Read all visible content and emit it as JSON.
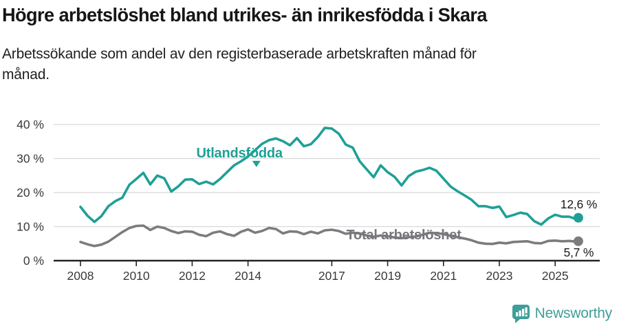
{
  "header": {
    "title": "Högre arbetslöshet bland utrikes- än inrikesfödda i Skara",
    "subtitle_line1": "Arbetssökande som andel av den registerbaserade arbetskraften månad för",
    "subtitle_line2": "månad."
  },
  "chart_data": {
    "type": "line",
    "title": "Högre arbetslöshet bland utrikes- än inrikesfödda i Skara",
    "subtitle": "Arbetssökande som andel av den registerbaserade arbetskraften månad för månad.",
    "grid": "horizontal",
    "legend_position": "inline-labels",
    "x_range": [
      2008,
      2025.92
    ],
    "ylim": [
      0,
      40
    ],
    "y_ticks": [
      0,
      10,
      20,
      30,
      40
    ],
    "y_tick_suffix": " %",
    "x_ticks": [
      2008,
      2010,
      2012,
      2014,
      2017,
      2019,
      2021,
      2023,
      2025
    ],
    "colors": {
      "utlandsfodda": "#1ea096",
      "total": "#7b7c80",
      "grid": "#d8d8d8",
      "axis": "#222222",
      "tick_text": "#3a3a3a",
      "value_text": "#1a1a1a",
      "brand_teal": "#3f9e99"
    },
    "x": [
      2008.0,
      2008.25,
      2008.5,
      2008.75,
      2009.0,
      2009.25,
      2009.5,
      2009.75,
      2010.0,
      2010.25,
      2010.5,
      2010.75,
      2011.0,
      2011.25,
      2011.5,
      2011.75,
      2012.0,
      2012.25,
      2012.5,
      2012.75,
      2013.0,
      2013.25,
      2013.5,
      2013.75,
      2014.0,
      2014.25,
      2014.5,
      2014.75,
      2015.0,
      2015.25,
      2015.5,
      2015.75,
      2016.0,
      2016.25,
      2016.5,
      2016.75,
      2017.0,
      2017.25,
      2017.5,
      2017.75,
      2018.0,
      2018.25,
      2018.5,
      2018.75,
      2019.0,
      2019.25,
      2019.5,
      2019.75,
      2020.0,
      2020.25,
      2020.5,
      2020.75,
      2021.0,
      2021.25,
      2021.5,
      2021.75,
      2022.0,
      2022.25,
      2022.5,
      2022.75,
      2023.0,
      2023.25,
      2023.5,
      2023.75,
      2024.0,
      2024.25,
      2024.5,
      2024.75,
      2025.0,
      2025.25,
      2025.5,
      2025.75,
      2025.83
    ],
    "series": [
      {
        "name": "Utlandsfödda",
        "color": "#1ea096",
        "end_label": "12,6 %",
        "last_value": 12.6,
        "values": [
          15.8,
          13.2,
          11.4,
          13.1,
          16.0,
          17.5,
          18.5,
          22.3,
          24.0,
          25.8,
          22.4,
          25.0,
          24.2,
          20.3,
          21.8,
          23.8,
          23.9,
          22.5,
          23.2,
          22.4,
          24.0,
          26.0,
          28.0,
          29.2,
          30.6,
          32.4,
          34.3,
          35.4,
          35.9,
          35.1,
          33.9,
          36.0,
          33.6,
          34.2,
          36.3,
          39.0,
          38.8,
          37.3,
          34.1,
          33.2,
          29.2,
          26.8,
          24.5,
          28.0,
          26.0,
          24.6,
          22.1,
          24.8,
          26.1,
          26.6,
          27.3,
          26.4,
          24.1,
          21.8,
          20.4,
          19.2,
          17.9,
          16.0,
          16.0,
          15.5,
          15.9,
          12.8,
          13.4,
          14.1,
          13.7,
          11.6,
          10.6,
          12.4,
          13.5,
          12.9,
          12.9,
          12.2,
          12.6
        ]
      },
      {
        "name": "Total arbetslöshet",
        "color": "#7b7c80",
        "end_label": "5,7 %",
        "last_value": 5.7,
        "values": [
          5.5,
          4.8,
          4.3,
          4.7,
          5.6,
          7.0,
          8.4,
          9.6,
          10.2,
          10.3,
          9.0,
          10.0,
          9.6,
          8.7,
          8.1,
          8.6,
          8.5,
          7.6,
          7.2,
          8.2,
          8.6,
          7.8,
          7.3,
          8.5,
          9.2,
          8.2,
          8.7,
          9.6,
          9.3,
          8.0,
          8.6,
          8.5,
          7.8,
          8.5,
          8.0,
          8.9,
          9.1,
          8.7,
          7.9,
          8.2,
          8.0,
          7.4,
          7.0,
          7.4,
          7.2,
          6.8,
          6.6,
          6.9,
          7.1,
          7.6,
          8.2,
          8.1,
          7.8,
          7.3,
          6.9,
          6.5,
          6.0,
          5.3,
          5.0,
          4.9,
          5.3,
          5.1,
          5.5,
          5.6,
          5.7,
          5.2,
          5.1,
          5.8,
          5.9,
          5.7,
          5.8,
          5.6,
          5.7
        ]
      }
    ],
    "annotations": [
      {
        "id": "series-label-utlandsfodda",
        "text": "Utlandsfödda",
        "x": 2012.15,
        "y": 30.3,
        "color": "#1ea096",
        "bold": true,
        "size": 20,
        "anchor": "start"
      },
      {
        "id": "series-label-total",
        "text": "Total arbetslöshet",
        "x": 2017.52,
        "y": 6.3,
        "color": "#76777b",
        "bold": true,
        "size": 20,
        "anchor": "start"
      },
      {
        "id": "end-value-utlandsfodda",
        "text": "12,6 %",
        "x": 2026.5,
        "y": 15.4,
        "color": "#1a1a1a",
        "bold": false,
        "size": 17.5,
        "anchor": "end"
      },
      {
        "id": "end-value-total",
        "text": "5,7 %",
        "x": 2026.38,
        "y": 1.2,
        "color": "#1a1a1a",
        "bold": false,
        "size": 17.5,
        "anchor": "end"
      }
    ],
    "arrow_marker": {
      "x": 2014.3,
      "y": 27.5,
      "color": "#1ea096"
    }
  },
  "footer": {
    "brand": "Newsworthy"
  }
}
